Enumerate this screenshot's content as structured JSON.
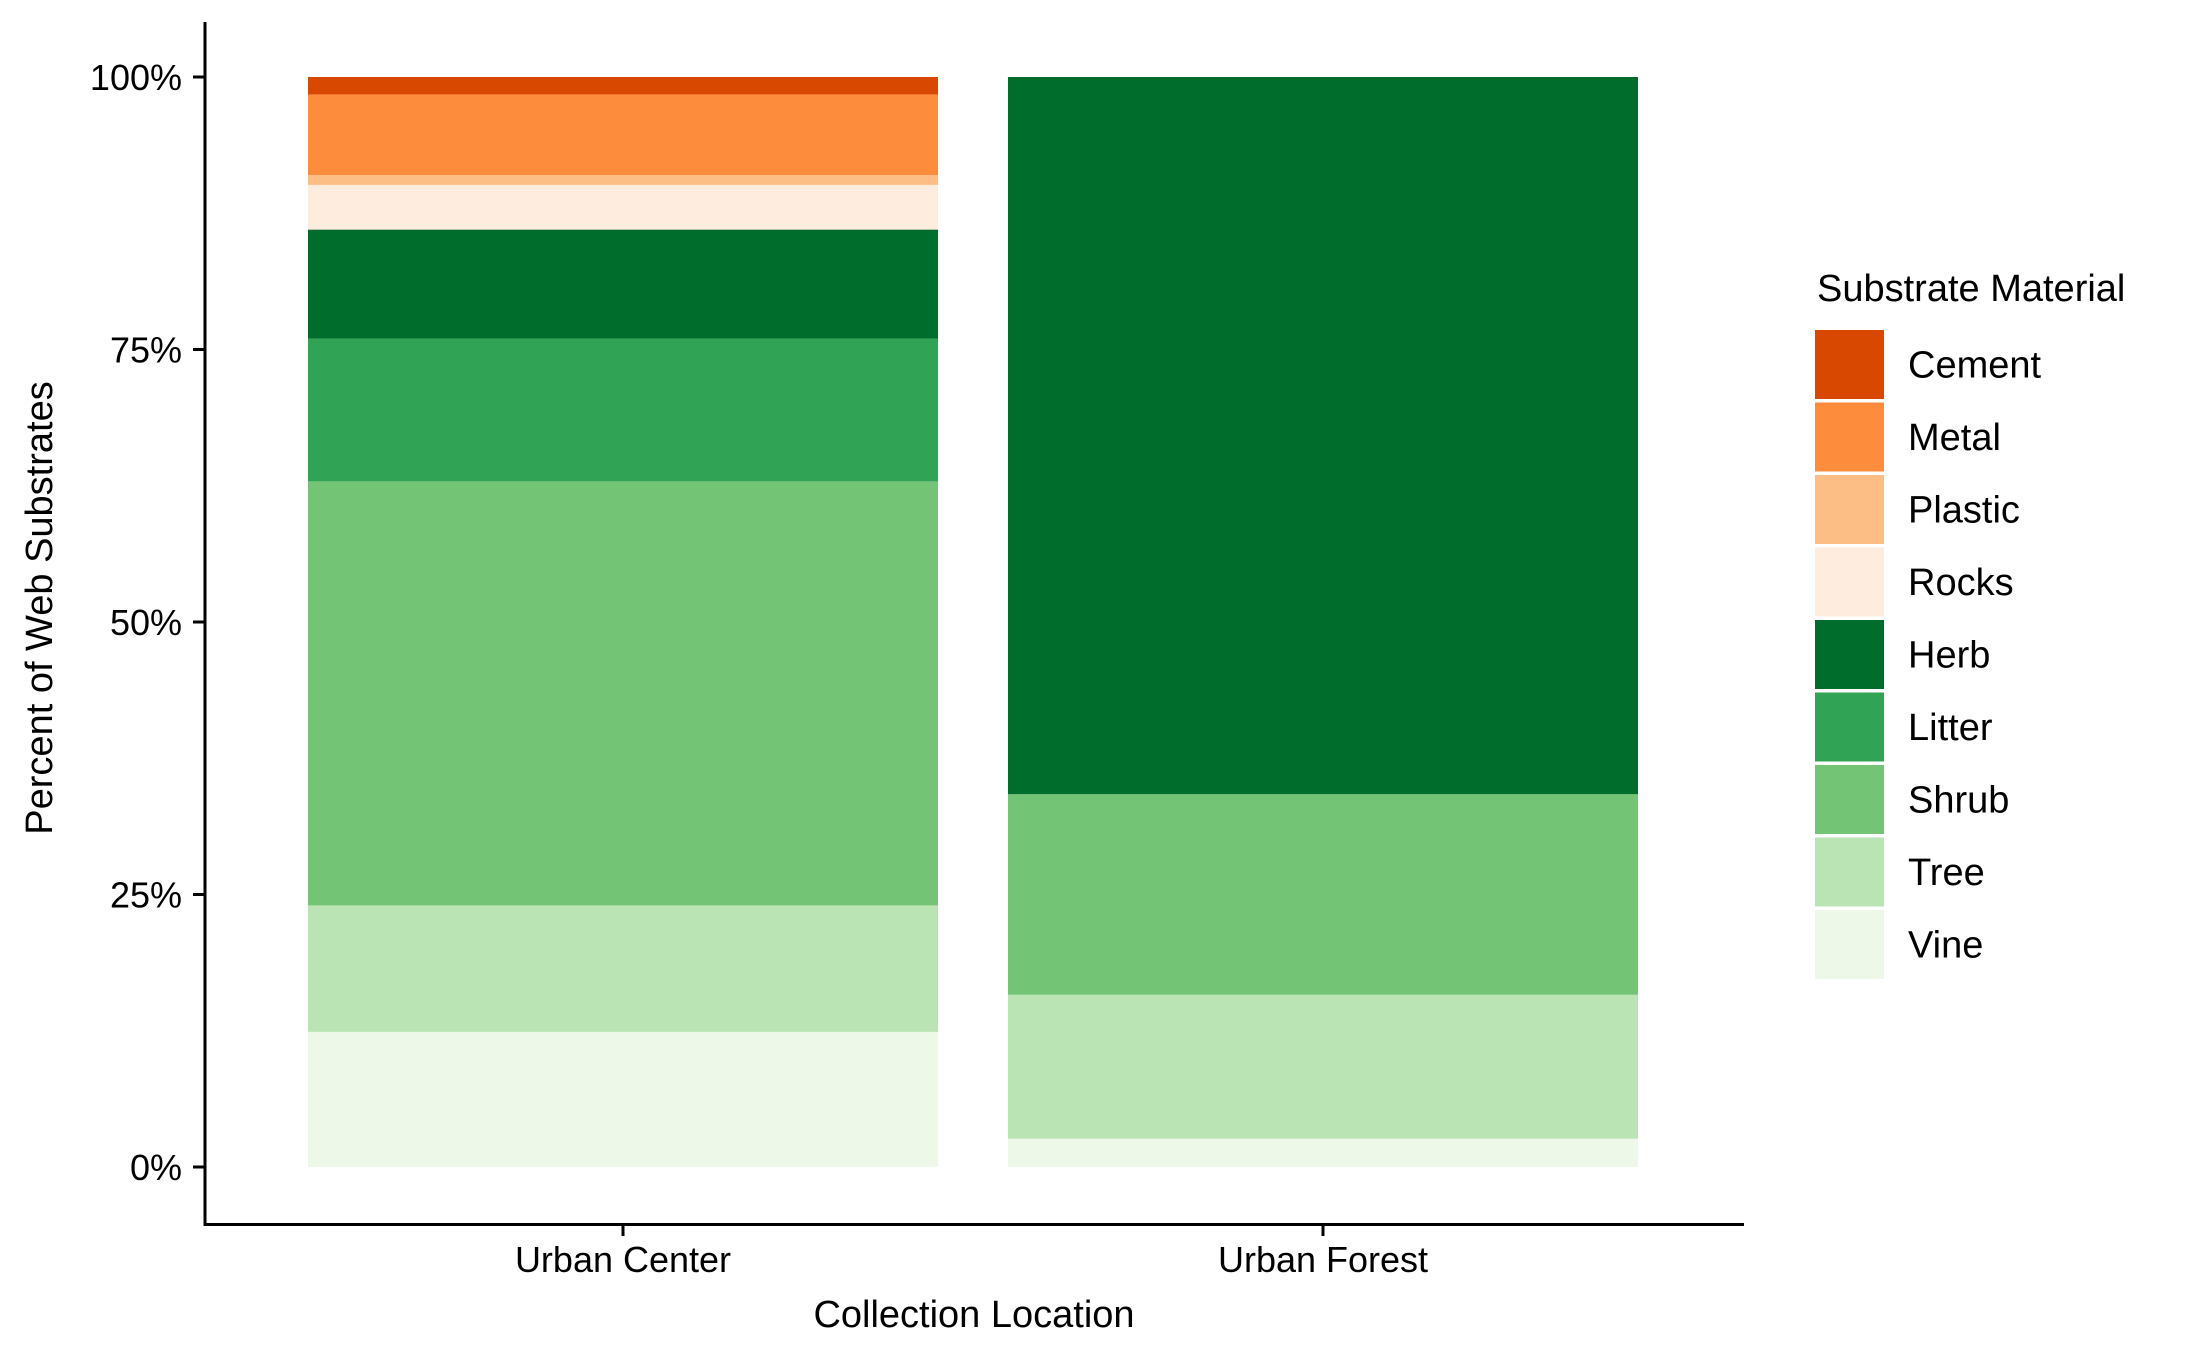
{
  "chart_data": {
    "type": "bar",
    "stacked": true,
    "normalized": true,
    "categories": [
      "Urban Center",
      "Urban Forest"
    ],
    "xlabel": "Collection Location",
    "ylabel": "Percent of Web Substrates",
    "ylim": [
      0,
      100
    ],
    "y_ticks": [
      {
        "value": 0,
        "label": "0%"
      },
      {
        "value": 25,
        "label": "25%"
      },
      {
        "value": 50,
        "label": "50%"
      },
      {
        "value": 75,
        "label": "75%"
      },
      {
        "value": 100,
        "label": "100%"
      }
    ],
    "grid": false,
    "legend": {
      "title": "Substrate Material",
      "position": "right",
      "entries": [
        {
          "label": "Cement",
          "color": "#D94801"
        },
        {
          "label": "Metal",
          "color": "#FD8D3C"
        },
        {
          "label": "Plastic",
          "color": "#FDBE85"
        },
        {
          "label": "Rocks",
          "color": "#FEEDDE"
        },
        {
          "label": "Herb",
          "color": "#006D2C"
        },
        {
          "label": "Litter",
          "color": "#31A354"
        },
        {
          "label": "Shrub",
          "color": "#74C476"
        },
        {
          "label": "Tree",
          "color": "#BAE4B3"
        },
        {
          "label": "Vine",
          "color": "#EDF8E9"
        }
      ]
    },
    "series": [
      {
        "name": "Vine",
        "values": [
          12.4,
          2.6
        ]
      },
      {
        "name": "Tree",
        "values": [
          11.6,
          13.2
        ]
      },
      {
        "name": "Shrub",
        "values": [
          38.9,
          18.4
        ]
      },
      {
        "name": "Litter",
        "values": [
          13.1,
          0
        ]
      },
      {
        "name": "Herb",
        "values": [
          10.0,
          65.8
        ]
      },
      {
        "name": "Rocks",
        "values": [
          4.1,
          0
        ]
      },
      {
        "name": "Plastic",
        "values": [
          0.9,
          0
        ]
      },
      {
        "name": "Metal",
        "values": [
          7.4,
          0
        ]
      },
      {
        "name": "Cement",
        "values": [
          1.6,
          0
        ]
      }
    ]
  }
}
